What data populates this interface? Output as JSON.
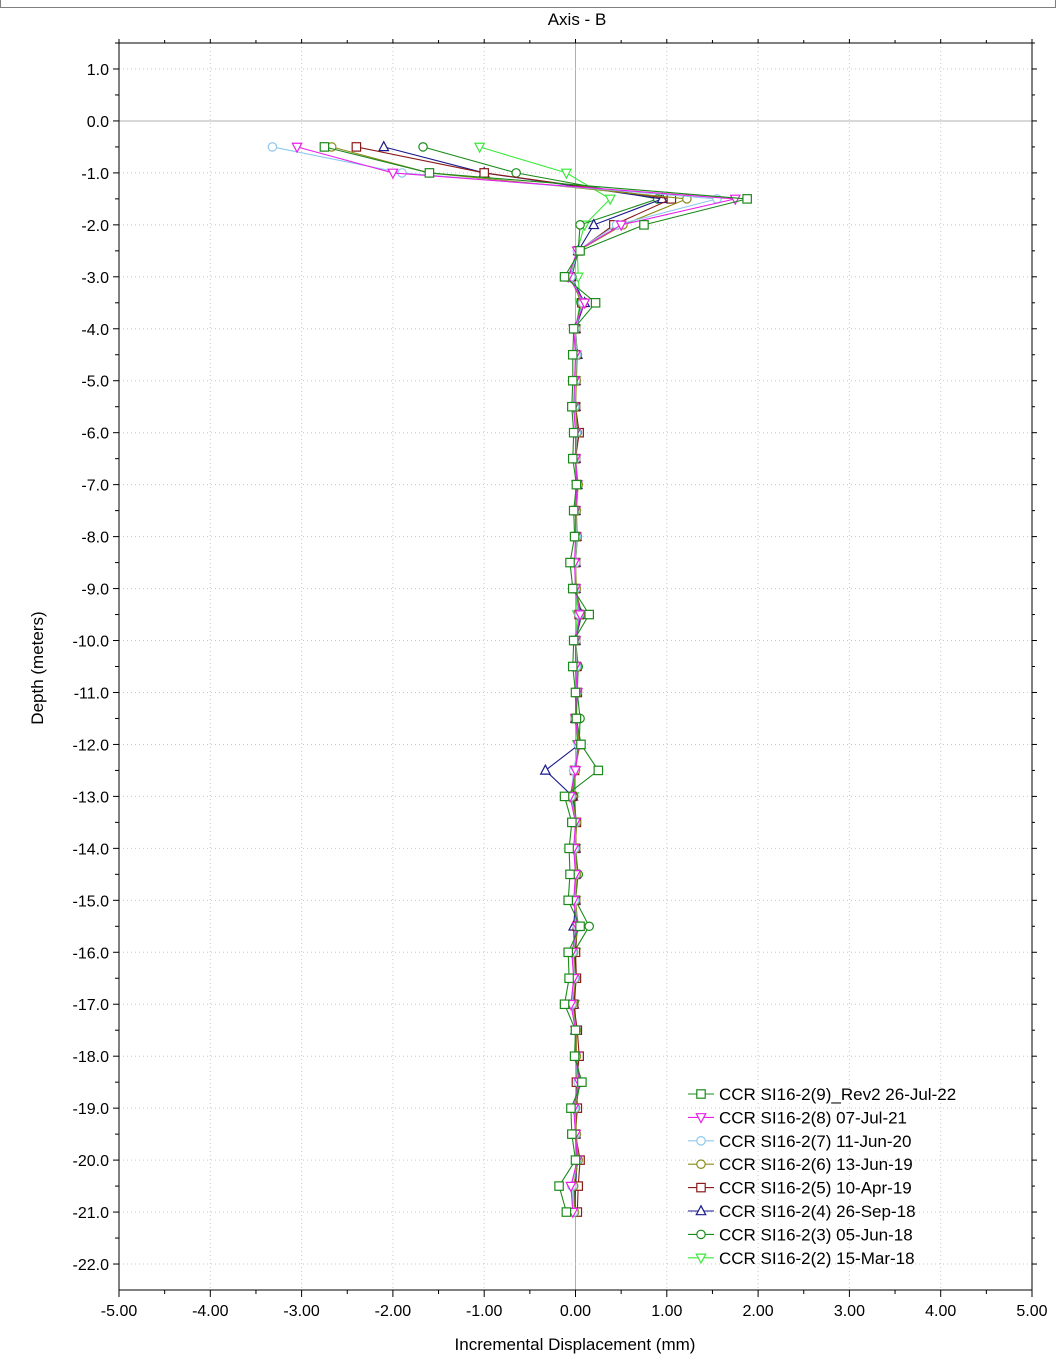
{
  "chart_data": {
    "type": "line",
    "title": "Axis - B",
    "xlabel": "Incremental Displacement (mm)",
    "ylabel": "Depth (meters)",
    "xlim": [
      -5,
      5
    ],
    "ylim": [
      -22.5,
      1.5
    ],
    "x_ticks": [
      -5,
      -4,
      -3,
      -2,
      -1,
      0,
      1,
      2,
      3,
      4,
      5
    ],
    "x_tick_labels": [
      "-5.00",
      "-4.00",
      "-3.00",
      "-2.00",
      "-1.00",
      "0.00",
      "1.00",
      "2.00",
      "3.00",
      "4.00",
      "5.00"
    ],
    "y_ticks": [
      1,
      0,
      -1,
      -2,
      -3,
      -4,
      -5,
      -6,
      -7,
      -8,
      -9,
      -10,
      -11,
      -12,
      -13,
      -14,
      -15,
      -16,
      -17,
      -18,
      -19,
      -20,
      -21,
      -22
    ],
    "y_tick_labels": [
      "1.0",
      "0.0",
      "-1.0",
      "-2.0",
      "-3.0",
      "-4.0",
      "-5.0",
      "-6.0",
      "-7.0",
      "-8.0",
      "-9.0",
      "-10.0",
      "-11.0",
      "-12.0",
      "-13.0",
      "-14.0",
      "-15.0",
      "-16.0",
      "-17.0",
      "-18.0",
      "-19.0",
      "-20.0",
      "-21.0",
      "-22.0"
    ],
    "grid": true,
    "legend_position": "bottom-right",
    "depths": [
      -0.5,
      -1.0,
      -1.5,
      -2.0,
      -2.5,
      -3.0,
      -3.5,
      -4.0,
      -4.5,
      -5.0,
      -5.5,
      -6.0,
      -6.5,
      -7.0,
      -7.5,
      -8.0,
      -8.5,
      -9.0,
      -9.5,
      -10.0,
      -10.5,
      -11.0,
      -11.5,
      -12.0,
      -12.5,
      -13.0,
      -13.5,
      -14.0,
      -14.5,
      -15.0,
      -15.5,
      -16.0,
      -16.5,
      -17.0,
      -17.5,
      -18.0,
      -18.5,
      -19.0,
      -19.5,
      -20.0,
      -20.5,
      -21.0
    ],
    "series": [
      {
        "name": "CCR SI16-2(9)_Rev2 26-Jul-22",
        "color": "#1a8a1a",
        "marker": "square",
        "values": [
          -2.75,
          -1.6,
          1.88,
          0.75,
          0.05,
          -0.12,
          0.22,
          -0.02,
          -0.03,
          -0.03,
          -0.04,
          -0.02,
          -0.03,
          0.01,
          -0.02,
          -0.01,
          -0.06,
          -0.03,
          0.15,
          -0.02,
          -0.03,
          0.0,
          0.01,
          0.06,
          0.25,
          -0.12,
          -0.04,
          -0.07,
          -0.06,
          -0.08,
          0.05,
          -0.08,
          -0.07,
          -0.12,
          0.0,
          -0.01,
          0.07,
          -0.05,
          -0.04,
          0.0,
          -0.18,
          -0.1
        ]
      },
      {
        "name": "CCR SI16-2(8) 07-Jul-21",
        "color": "#e820e8",
        "marker": "triangle-down",
        "values": [
          -3.05,
          -2.0,
          1.75,
          0.5,
          0.02,
          -0.08,
          0.1,
          -0.02,
          0.0,
          -0.01,
          -0.02,
          0.0,
          0.0,
          0.02,
          0.0,
          0.0,
          -0.01,
          0.0,
          0.05,
          0.0,
          0.0,
          0.02,
          0.0,
          0.03,
          0.0,
          -0.06,
          0.0,
          -0.02,
          0.0,
          -0.02,
          0.02,
          -0.04,
          -0.02,
          -0.05,
          0.0,
          0.0,
          0.04,
          -0.02,
          0.0,
          0.02,
          -0.05,
          -0.03
        ]
      },
      {
        "name": "CCR SI16-2(7) 11-Jun-20",
        "color": "#8ec8ee",
        "marker": "circle",
        "values": [
          -3.32,
          -1.9,
          1.55,
          0.45,
          0.02,
          -0.05,
          0.08,
          0.0,
          0.01,
          0.0,
          -0.01,
          0.01,
          0.0,
          0.02,
          0.0,
          0.01,
          0.0,
          0.0,
          0.04,
          0.0,
          0.01,
          0.01,
          0.0,
          0.03,
          -0.02,
          -0.05,
          0.0,
          -0.01,
          0.0,
          -0.01,
          0.02,
          -0.03,
          -0.01,
          -0.04,
          0.0,
          0.0,
          0.03,
          -0.01,
          0.0,
          0.02,
          -0.04,
          -0.02
        ]
      },
      {
        "name": "CCR SI16-2(6) 13-Jun-19",
        "color": "#8c8c1a",
        "marker": "circle",
        "values": [
          -2.67,
          -1.6,
          1.22,
          0.52,
          0.03,
          -0.06,
          0.07,
          0.0,
          0.02,
          0.01,
          0.0,
          0.02,
          0.0,
          0.03,
          0.01,
          0.02,
          0.0,
          0.01,
          0.05,
          0.0,
          0.02,
          0.02,
          0.01,
          0.04,
          0.0,
          -0.04,
          0.01,
          0.0,
          0.01,
          0.0,
          0.03,
          -0.02,
          0.0,
          -0.03,
          0.01,
          0.01,
          0.03,
          0.0,
          0.01,
          0.03,
          -0.02,
          -0.01
        ]
      },
      {
        "name": "CCR SI16-2(5) 10-Apr-19",
        "color": "#8b1a1a",
        "marker": "square",
        "values": [
          -2.4,
          -1.0,
          1.05,
          0.42,
          0.03,
          -0.06,
          0.07,
          0.0,
          0.0,
          0.0,
          0.0,
          0.04,
          0.0,
          0.02,
          0.0,
          0.01,
          0.0,
          0.0,
          0.04,
          0.0,
          0.01,
          0.02,
          0.0,
          0.05,
          -0.01,
          -0.04,
          0.01,
          0.0,
          0.0,
          0.0,
          0.02,
          0.0,
          0.01,
          -0.02,
          0.02,
          0.04,
          0.01,
          0.02,
          0.0,
          0.05,
          0.03,
          0.02
        ]
      },
      {
        "name": "CCR SI16-2(4) 26-Sep-18",
        "color": "#1a1a8a",
        "marker": "triangle-up",
        "values": [
          -2.1,
          -1.0,
          0.95,
          0.2,
          0.03,
          -0.05,
          0.1,
          0.0,
          0.02,
          0.0,
          0.0,
          0.02,
          0.0,
          0.02,
          0.0,
          0.01,
          0.0,
          0.0,
          0.06,
          0.0,
          0.01,
          0.01,
          0.0,
          0.04,
          -0.33,
          -0.03,
          0.0,
          0.0,
          0.0,
          0.0,
          -0.02,
          -0.01,
          0.0,
          -0.02,
          0.0,
          0.01,
          0.02,
          0.0,
          0.0,
          0.02,
          0.0,
          -0.01
        ]
      },
      {
        "name": "CCR SI16-2(3) 05-Jun-18",
        "color": "#1a8a1a",
        "marker": "circle",
        "values": [
          -1.67,
          -0.65,
          0.9,
          0.05,
          0.03,
          -0.04,
          0.06,
          0.0,
          0.01,
          0.0,
          0.0,
          0.01,
          0.0,
          0.02,
          0.0,
          0.02,
          0.0,
          0.0,
          0.07,
          0.0,
          0.03,
          0.02,
          0.05,
          0.04,
          -0.01,
          -0.02,
          0.01,
          0.0,
          0.03,
          0.0,
          0.15,
          -0.02,
          0.0,
          -0.02,
          0.0,
          0.01,
          0.05,
          0.0,
          0.0,
          0.02,
          -0.01,
          0.0
        ]
      },
      {
        "name": "CCR SI16-2(2) 15-Mar-18",
        "color": "#3ae83a",
        "marker": "triangle-down",
        "values": [
          -1.05,
          -0.1,
          0.38,
          0.1,
          0.02,
          0.03,
          0.05,
          0.0,
          0.01,
          0.0,
          0.0,
          0.01,
          0.0,
          0.01,
          0.0,
          0.01,
          0.0,
          0.0,
          0.02,
          0.0,
          0.01,
          0.01,
          0.0,
          0.02,
          0.0,
          -0.02,
          0.0,
          0.0,
          0.0,
          0.0,
          0.02,
          0.0,
          0.0,
          -0.01,
          0.0,
          0.0,
          0.02,
          0.0,
          0.0,
          0.01,
          -0.01,
          0.0
        ]
      }
    ]
  }
}
